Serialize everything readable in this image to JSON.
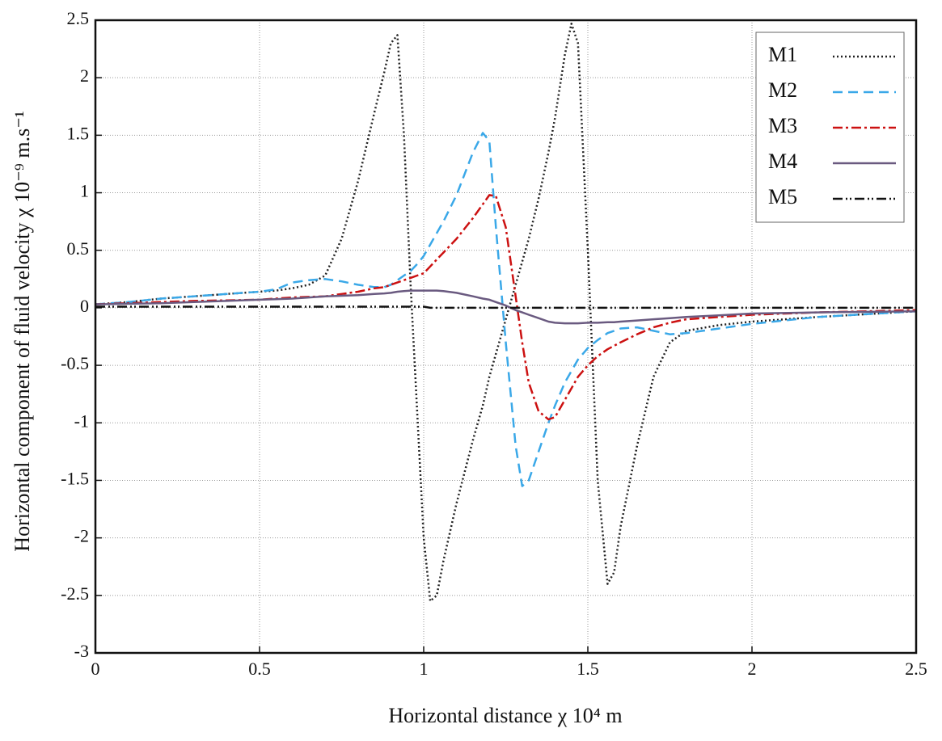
{
  "chart_data": {
    "type": "line",
    "xlabel": "Horizontal distance χ 10⁴ m",
    "ylabel": "Horizontal component of fluid velocity χ 10⁻⁹ m.s⁻¹",
    "xlim": [
      0,
      2.5
    ],
    "ylim": [
      -3,
      2.5
    ],
    "xticks": [
      0,
      0.5,
      1,
      1.5,
      2,
      2.5
    ],
    "yticks": [
      -3,
      -2.5,
      -2,
      -1.5,
      -1,
      -0.5,
      0,
      0.5,
      1,
      1.5,
      2,
      2.5
    ],
    "grid": true,
    "legend": "upper right",
    "x": [
      0,
      0.1,
      0.2,
      0.3,
      0.4,
      0.5,
      0.55,
      0.6,
      0.65,
      0.7,
      0.75,
      0.8,
      0.85,
      0.88,
      0.9,
      0.92,
      0.94,
      0.96,
      0.98,
      1.0,
      1.02,
      1.04,
      1.06,
      1.1,
      1.15,
      1.18,
      1.2,
      1.22,
      1.25,
      1.28,
      1.3,
      1.32,
      1.35,
      1.38,
      1.4,
      1.43,
      1.45,
      1.47,
      1.5,
      1.53,
      1.56,
      1.58,
      1.6,
      1.65,
      1.7,
      1.75,
      1.8,
      1.9,
      2.0,
      2.2,
      2.5
    ],
    "series": [
      {
        "name": "M1",
        "color": "#222222",
        "dash": "2 3",
        "values": [
          0.03,
          0.05,
          0.08,
          0.1,
          0.12,
          0.14,
          0.15,
          0.17,
          0.2,
          0.28,
          0.6,
          1.1,
          1.7,
          2.05,
          2.3,
          2.37,
          1.5,
          0.2,
          -0.9,
          -2.0,
          -2.55,
          -2.5,
          -2.2,
          -1.7,
          -1.15,
          -0.85,
          -0.6,
          -0.4,
          -0.1,
          0.2,
          0.4,
          0.6,
          0.95,
          1.35,
          1.65,
          2.2,
          2.47,
          2.3,
          0.5,
          -1.5,
          -2.4,
          -2.3,
          -1.9,
          -1.2,
          -0.6,
          -0.3,
          -0.2,
          -0.15,
          -0.12,
          -0.08,
          -0.03
        ]
      },
      {
        "name": "M2",
        "color": "#3aa8e8",
        "dash": "12 7",
        "values": [
          0.03,
          0.05,
          0.08,
          0.1,
          0.12,
          0.14,
          0.16,
          0.22,
          0.24,
          0.25,
          0.23,
          0.2,
          0.18,
          0.18,
          0.2,
          0.24,
          0.28,
          0.32,
          0.38,
          0.45,
          0.55,
          0.65,
          0.75,
          0.98,
          1.35,
          1.52,
          1.45,
          0.7,
          -0.3,
          -1.2,
          -1.55,
          -1.5,
          -1.25,
          -1.0,
          -0.85,
          -0.65,
          -0.55,
          -0.45,
          -0.35,
          -0.28,
          -0.22,
          -0.2,
          -0.18,
          -0.17,
          -0.2,
          -0.23,
          -0.22,
          -0.18,
          -0.14,
          -0.08,
          -0.03
        ]
      },
      {
        "name": "M3",
        "color": "#cc1111",
        "dash": "12 4 3 4",
        "values": [
          0.03,
          0.04,
          0.05,
          0.06,
          0.065,
          0.07,
          0.08,
          0.09,
          0.095,
          0.1,
          0.12,
          0.14,
          0.17,
          0.18,
          0.2,
          0.22,
          0.24,
          0.26,
          0.28,
          0.3,
          0.36,
          0.42,
          0.48,
          0.6,
          0.78,
          0.9,
          0.98,
          0.97,
          0.7,
          0.1,
          -0.3,
          -0.65,
          -0.9,
          -0.97,
          -0.95,
          -0.8,
          -0.7,
          -0.6,
          -0.5,
          -0.42,
          -0.36,
          -0.33,
          -0.3,
          -0.23,
          -0.17,
          -0.13,
          -0.1,
          -0.08,
          -0.06,
          -0.04,
          -0.02
        ]
      },
      {
        "name": "M4",
        "color": "#6a5a80",
        "dash": "",
        "values": [
          0.03,
          0.035,
          0.04,
          0.05,
          0.06,
          0.07,
          0.075,
          0.08,
          0.09,
          0.1,
          0.105,
          0.11,
          0.12,
          0.125,
          0.13,
          0.14,
          0.145,
          0.15,
          0.15,
          0.15,
          0.15,
          0.15,
          0.145,
          0.13,
          0.1,
          0.08,
          0.07,
          0.05,
          0.02,
          -0.02,
          -0.04,
          -0.06,
          -0.09,
          -0.12,
          -0.13,
          -0.135,
          -0.135,
          -0.135,
          -0.13,
          -0.13,
          -0.125,
          -0.125,
          -0.12,
          -0.11,
          -0.1,
          -0.09,
          -0.08,
          -0.065,
          -0.05,
          -0.04,
          -0.03
        ]
      },
      {
        "name": "M5",
        "color": "#111111",
        "dash": "12 4 2 3 2 4",
        "values": [
          0.01,
          0.01,
          0.01,
          0.01,
          0.01,
          0.01,
          0.01,
          0.01,
          0.01,
          0.01,
          0.01,
          0.01,
          0.01,
          0.01,
          0.01,
          0.01,
          0.01,
          0.01,
          0.01,
          0.01,
          0.0,
          0.0,
          0.0,
          0.0,
          0.0,
          0.0,
          0.0,
          0.0,
          0.0,
          0.0,
          0.0,
          0.0,
          0.0,
          0.0,
          0.0,
          0.0,
          0.0,
          0.0,
          0.0,
          0.0,
          0.0,
          0.0,
          0.0,
          0.0,
          0.0,
          0.0,
          0.0,
          0.0,
          0.0,
          0.0,
          0.0
        ]
      }
    ]
  }
}
